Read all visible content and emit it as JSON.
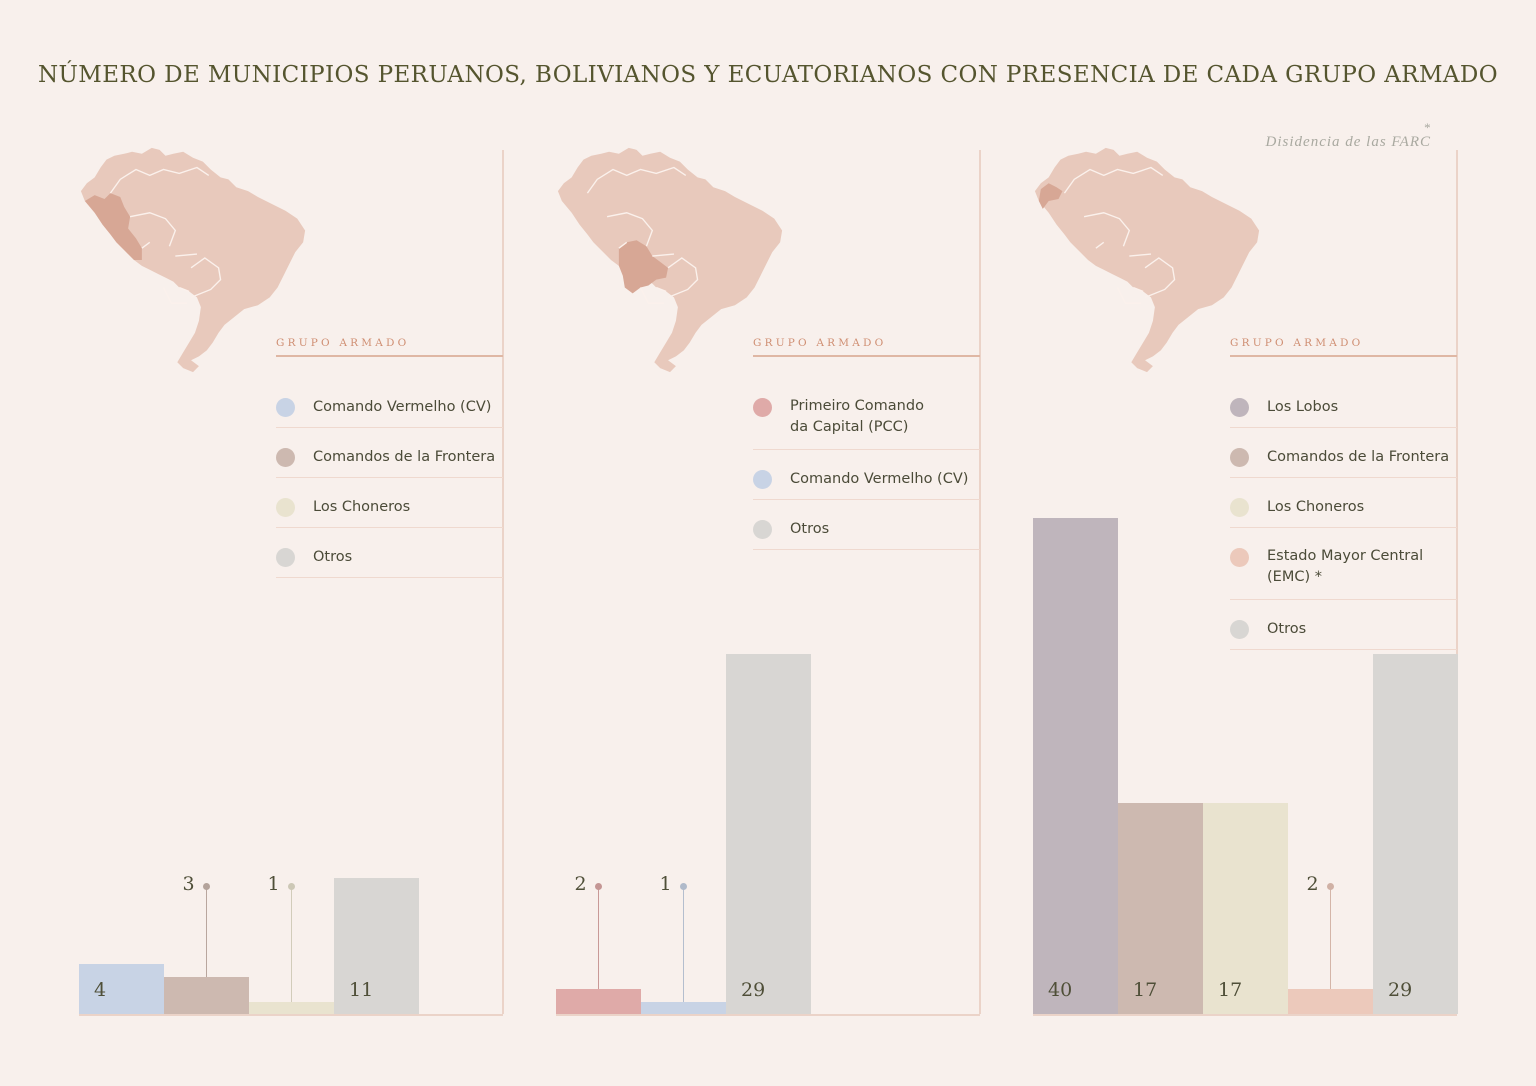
{
  "title": "NÚMERO DE MUNICIPIOS PERUANOS, BOLIVIANOS Y ECUATORIANOS CON PRESENCIA DE CADA GRUPO ARMADO",
  "footnote": {
    "marker": "*",
    "text": "Disidencia de las FARC"
  },
  "legend_heading": "GRUPO ARMADO",
  "colors": {
    "Comando Vermelho (CV)": "#c8d3e5",
    "Comandos de la Frontera": "#cdb9b0",
    "Los Choneros": "#e9e3cf",
    "Otros": "#d8d6d3",
    "Primeiro Comando da Capital (PCC)": "#dfaaa8",
    "Los Lobos": "#bfb5bc",
    "Estado Mayor Central (EMC)": "#ecc9bb",
    "map_base": "#e8c9bc",
    "map_highlight": "#d7a795"
  },
  "chart_data": [
    {
      "type": "bar",
      "country": "Perú",
      "highlight": "peru",
      "legend": [
        "Comando Vermelho (CV)",
        "Comandos de la Frontera",
        "Los Choneros",
        "Otros"
      ],
      "categories": [
        "Comando Vermelho (CV)",
        "Comandos de la Frontera",
        "Los Choneros",
        "Otros"
      ],
      "values": [
        4,
        3,
        1,
        11
      ],
      "labels": [
        "4",
        "3",
        "1",
        "11"
      ],
      "ylim": [
        0,
        40
      ]
    },
    {
      "type": "bar",
      "country": "Bolivia",
      "highlight": "bolivia",
      "legend": [
        "Primeiro Comando\nda Capital (PCC)",
        "Comando Vermelho (CV)",
        "Otros"
      ],
      "categories": [
        "Primeiro Comando da Capital (PCC)",
        "Comando Vermelho (CV)",
        "Otros"
      ],
      "values": [
        2,
        1,
        29
      ],
      "labels": [
        "2",
        "1",
        "29"
      ],
      "ylim": [
        0,
        40
      ]
    },
    {
      "type": "bar",
      "country": "Ecuador",
      "highlight": "ecuador",
      "legend": [
        "Los Lobos",
        "Comandos de la Frontera",
        "Los Choneros",
        "Estado Mayor Central\n(EMC) *",
        "Otros"
      ],
      "categories": [
        "Los Lobos",
        "Comandos de la Frontera",
        "Los Choneros",
        "Estado Mayor Central (EMC)",
        "Otros"
      ],
      "values": [
        40,
        17,
        17,
        2,
        29
      ],
      "labels": [
        "40",
        "17",
        "17",
        "2",
        "29"
      ],
      "ylim": [
        0,
        40
      ]
    }
  ]
}
